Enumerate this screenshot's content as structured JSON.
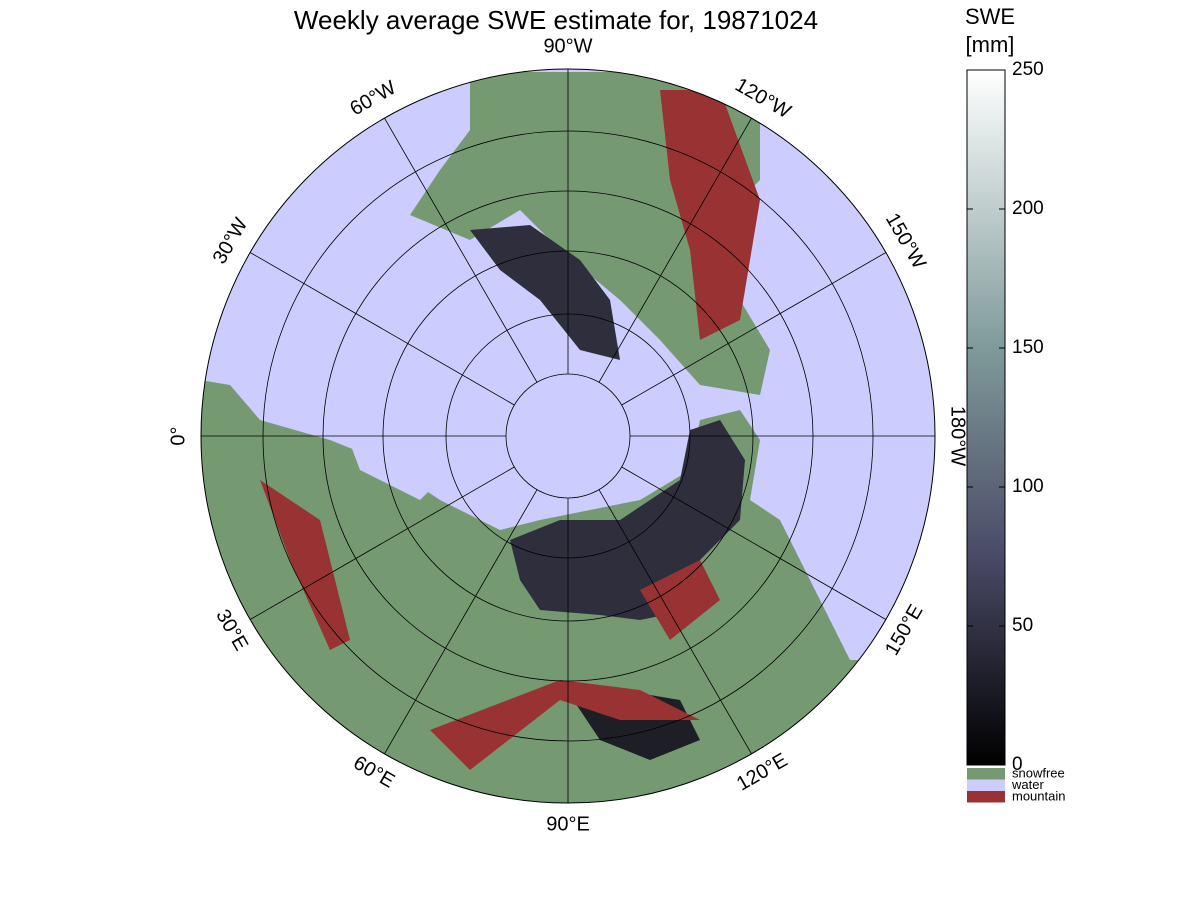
{
  "title": "Weekly average SWE estimate for, 19871024",
  "longitude_labels": [
    "0°",
    "30°E",
    "60°E",
    "90°E",
    "120°E",
    "150°E",
    "180°W",
    "150°W",
    "120°W",
    "90°W",
    "60°W",
    "30°W"
  ],
  "colorbar": {
    "label_lines": [
      "SWE",
      "[mm]"
    ],
    "range": [
      0,
      250
    ],
    "ticks": [
      0,
      50,
      100,
      150,
      200,
      250
    ]
  },
  "legend": [
    {
      "name": "snowfree",
      "color": "#759a72"
    },
    {
      "name": "water",
      "color": "#ccccff"
    },
    {
      "name": "mountain",
      "color": "#993333"
    }
  ]
}
